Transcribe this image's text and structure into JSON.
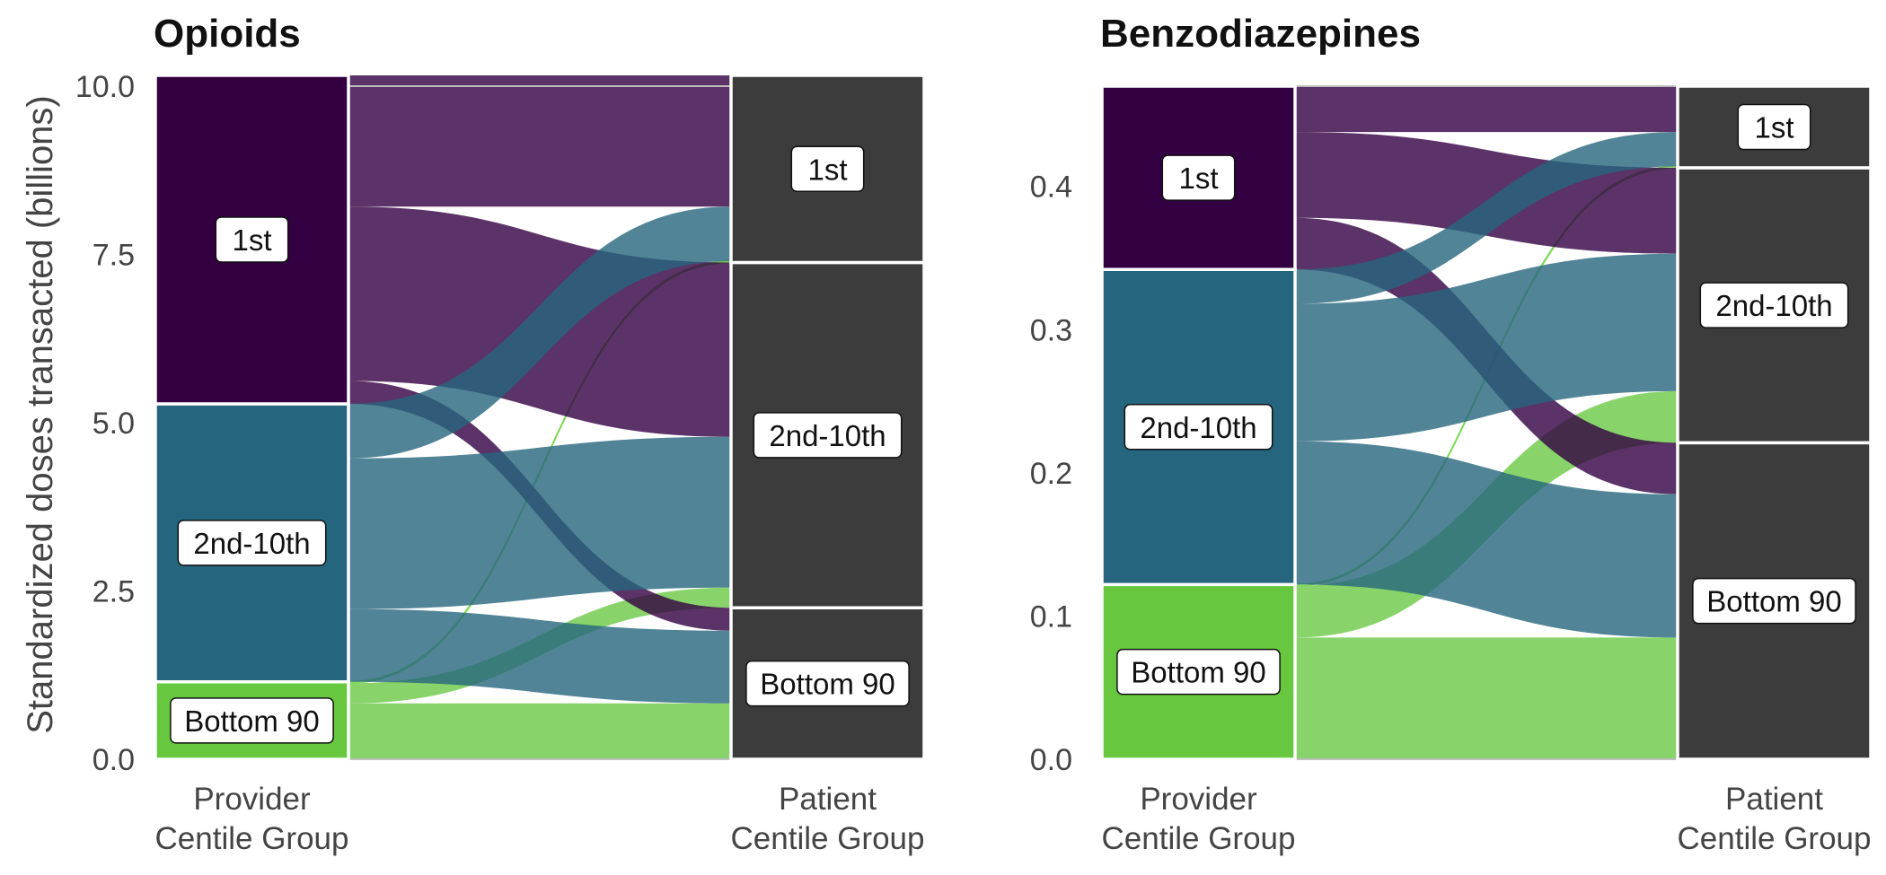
{
  "y_axis_label": "Standardized doses transacted (billions)",
  "axis_categories": [
    "Provider\nCentile Group",
    "Patient\nCentile Group"
  ],
  "colors": {
    "1st": "#330042",
    "2nd-10th": "#25657d",
    "Bottom 90": "#67c840",
    "patient": "#3c3c3c",
    "border": "#bdbdbd"
  },
  "chart_data": [
    {
      "type": "alluvial",
      "title": "Opioids",
      "ylim": [
        0,
        10.0
      ],
      "yticks": [
        "0.0",
        "2.5",
        "5.0",
        "7.5",
        "10.0"
      ],
      "ytick_values": [
        0,
        2.5,
        5,
        7.5,
        10
      ],
      "provider_strata": [
        {
          "label": "Bottom 90",
          "value": 1.15
        },
        {
          "label": "2nd-10th",
          "value": 4.13
        },
        {
          "label": "1st",
          "value": 4.88
        }
      ],
      "patient_strata": [
        {
          "label": "Bottom 90",
          "value": 2.25
        },
        {
          "label": "2nd-10th",
          "value": 5.13
        },
        {
          "label": "1st",
          "value": 2.78
        }
      ],
      "flows": [
        {
          "from": "Bottom 90",
          "to": "Bottom 90",
          "value": 0.83
        },
        {
          "from": "Bottom 90",
          "to": "2nd-10th",
          "value": 0.3
        },
        {
          "from": "Bottom 90",
          "to": "1st",
          "value": 0.02
        },
        {
          "from": "2nd-10th",
          "to": "Bottom 90",
          "value": 1.08
        },
        {
          "from": "2nd-10th",
          "to": "2nd-10th",
          "value": 2.24
        },
        {
          "from": "2nd-10th",
          "to": "1st",
          "value": 0.81
        },
        {
          "from": "1st",
          "to": "Bottom 90",
          "value": 0.34
        },
        {
          "from": "1st",
          "to": "2nd-10th",
          "value": 2.59
        },
        {
          "from": "1st",
          "to": "1st",
          "value": 1.95
        }
      ]
    },
    {
      "type": "alluvial",
      "title": "Benzodiazepines",
      "ylim": [
        0,
        0.47
      ],
      "yticks": [
        "0.0",
        "0.1",
        "0.2",
        "0.3",
        "0.4"
      ],
      "ytick_values": [
        0,
        0.1,
        0.2,
        0.3,
        0.4
      ],
      "provider_strata": [
        {
          "label": "Bottom 90",
          "value": 0.122
        },
        {
          "label": "2nd-10th",
          "value": 0.22
        },
        {
          "label": "1st",
          "value": 0.128
        }
      ],
      "patient_strata": [
        {
          "label": "Bottom 90",
          "value": 0.221
        },
        {
          "label": "2nd-10th",
          "value": 0.192
        },
        {
          "label": "1st",
          "value": 0.057
        }
      ],
      "flows": [
        {
          "from": "Bottom 90",
          "to": "Bottom 90",
          "value": 0.085
        },
        {
          "from": "Bottom 90",
          "to": "2nd-10th",
          "value": 0.036
        },
        {
          "from": "Bottom 90",
          "to": "1st",
          "value": 0.001
        },
        {
          "from": "2nd-10th",
          "to": "Bottom 90",
          "value": 0.1
        },
        {
          "from": "2nd-10th",
          "to": "2nd-10th",
          "value": 0.096
        },
        {
          "from": "2nd-10th",
          "to": "1st",
          "value": 0.024
        },
        {
          "from": "1st",
          "to": "Bottom 90",
          "value": 0.036
        },
        {
          "from": "1st",
          "to": "2nd-10th",
          "value": 0.06
        },
        {
          "from": "1st",
          "to": "1st",
          "value": 0.032
        }
      ]
    }
  ]
}
